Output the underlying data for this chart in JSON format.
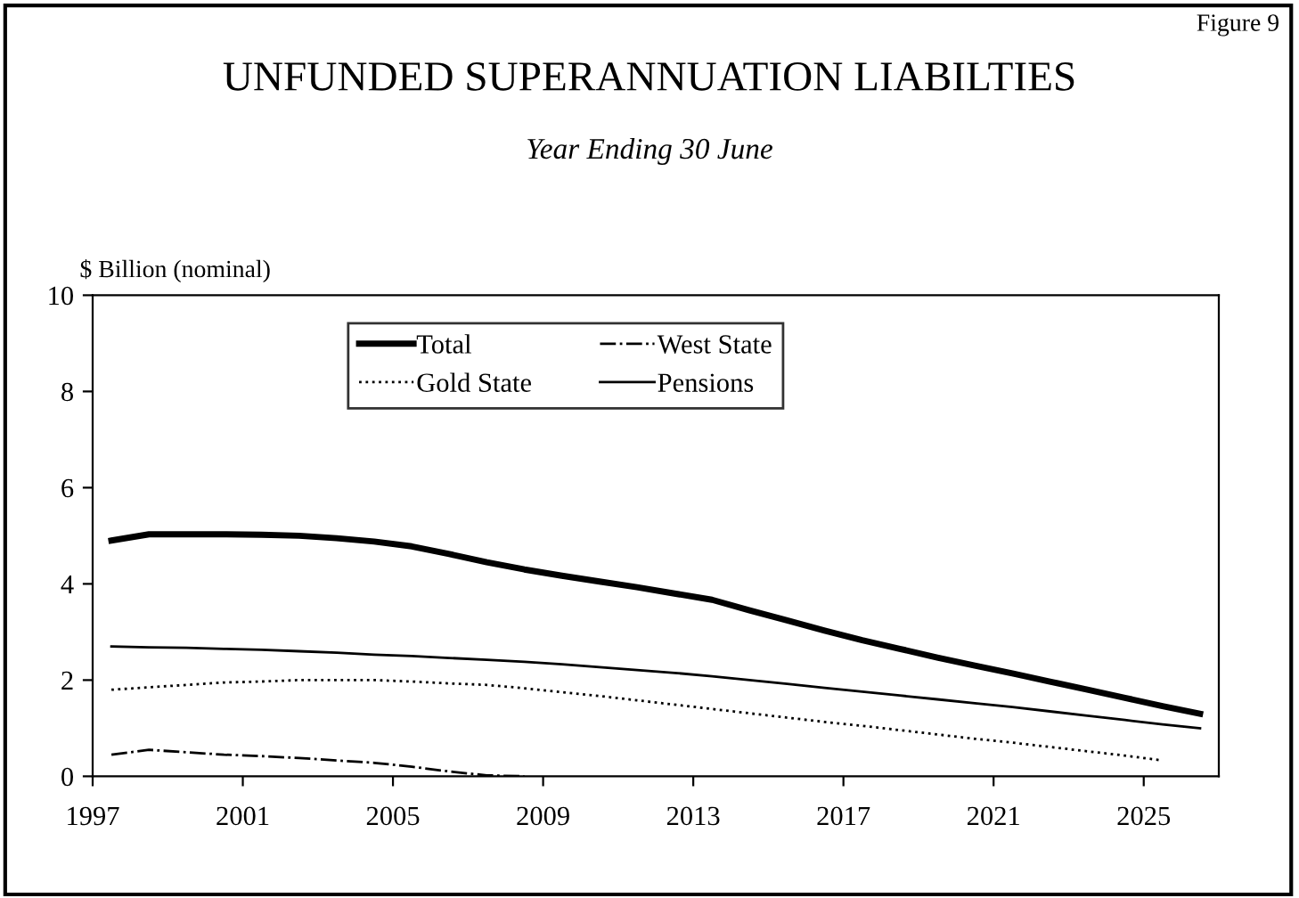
{
  "chart_data": {
    "type": "line",
    "title": "UNFUNDED SUPERANNUATION LIABILTIES",
    "subtitle": "Year Ending 30 June",
    "ylabel": "$ Billion (nominal)",
    "annotations": [
      "Figure 9"
    ],
    "x": [
      1997,
      1998,
      1999,
      2000,
      2001,
      2002,
      2003,
      2004,
      2005,
      2006,
      2007,
      2008,
      2009,
      2010,
      2011,
      2012,
      2013,
      2014,
      2015,
      2016,
      2017,
      2018,
      2019,
      2020,
      2021,
      2022,
      2023,
      2024,
      2025,
      2026
    ],
    "series": [
      {
        "name": "Total",
        "color": "#000000",
        "line_style": "solid",
        "values": [
          4.9,
          5.03,
          5.03,
          5.03,
          5.02,
          5.0,
          4.95,
          4.88,
          4.78,
          4.62,
          4.45,
          4.3,
          4.17,
          4.05,
          3.93,
          3.8,
          3.67,
          3.45,
          3.24,
          3.03,
          2.83,
          2.65,
          2.47,
          2.3,
          2.14,
          1.97,
          1.8,
          1.63,
          1.46,
          1.3
        ]
      },
      {
        "name": "Gold State",
        "color": "#000000",
        "line_style": "dotted",
        "values": [
          1.8,
          1.85,
          1.9,
          1.95,
          1.97,
          2.0,
          2.0,
          2.0,
          1.97,
          1.93,
          1.9,
          1.83,
          1.75,
          1.67,
          1.58,
          1.49,
          1.4,
          1.31,
          1.22,
          1.13,
          1.05,
          0.96,
          0.87,
          0.78,
          0.7,
          0.61,
          0.52,
          0.43,
          0.33,
          null
        ]
      },
      {
        "name": "West State",
        "color": "#000000",
        "line_style": "dashdot",
        "values": [
          0.45,
          0.55,
          0.5,
          0.45,
          0.42,
          0.38,
          0.33,
          0.28,
          0.2,
          0.1,
          0.02,
          0,
          null,
          null,
          null,
          null,
          null,
          null,
          null,
          null,
          null,
          null,
          null,
          null,
          null,
          null,
          null,
          null,
          null,
          null
        ]
      },
      {
        "name": "Pensions",
        "color": "#000000",
        "line_style": "solid",
        "values": [
          2.7,
          2.68,
          2.67,
          2.65,
          2.63,
          2.6,
          2.57,
          2.53,
          2.5,
          2.46,
          2.42,
          2.38,
          2.33,
          2.27,
          2.21,
          2.15,
          2.08,
          2.0,
          1.92,
          1.84,
          1.76,
          1.68,
          1.6,
          1.52,
          1.44,
          1.35,
          1.26,
          1.17,
          1.08,
          1.0
        ]
      }
    ],
    "xlim": [
      1996.5,
      2026.5
    ],
    "xticks": [
      {
        "value": 1996.5,
        "label": "1997"
      },
      {
        "value": 2000.5,
        "label": "2001"
      },
      {
        "value": 2004.5,
        "label": "2005"
      },
      {
        "value": 2008.5,
        "label": "2009"
      },
      {
        "value": 2012.5,
        "label": "2013"
      },
      {
        "value": 2016.5,
        "label": "2017"
      },
      {
        "value": 2020.5,
        "label": "2021"
      },
      {
        "value": 2024.5,
        "label": "2025"
      }
    ],
    "ylim": [
      0,
      10
    ],
    "yticks": [
      0,
      2,
      4,
      6,
      8,
      10
    ],
    "grid": false,
    "legend": "top",
    "marker": "none"
  }
}
